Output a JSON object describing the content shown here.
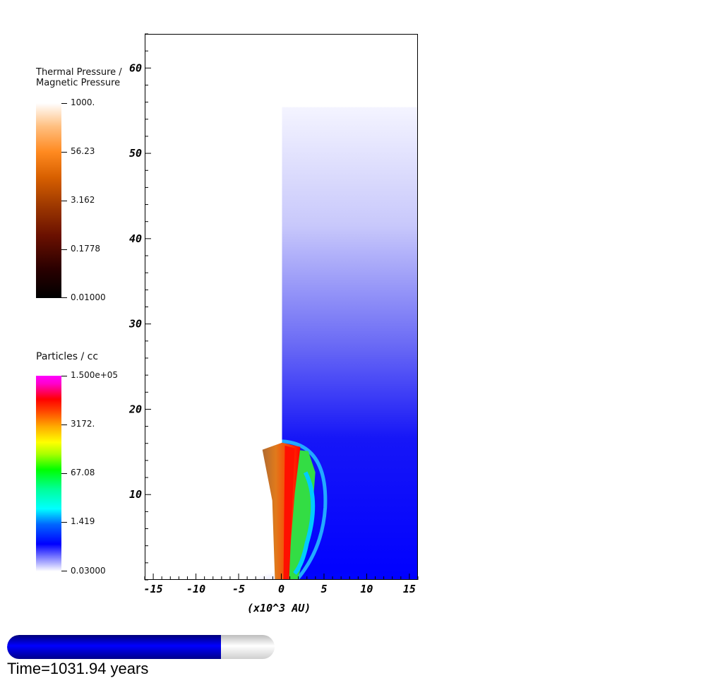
{
  "legend_thermal": {
    "title_line1": "Thermal Pressure /",
    "title_line2": "Magnetic Pressure",
    "ticks": [
      "1000.",
      "56.23",
      "3.162",
      "0.1778",
      "0.01000"
    ],
    "colors": [
      "#000000",
      "#6a1000",
      "#d86000",
      "#ffbf80",
      "#ffffff"
    ]
  },
  "legend_density": {
    "title": "Particles / cc",
    "ticks": [
      "1.500e+05",
      "3172.",
      "67.08",
      "1.419",
      "0.03000"
    ],
    "colors": [
      "#ffffff",
      "#0000ff",
      "#00ffff",
      "#00ff00",
      "#ffff00",
      "#ff0000",
      "#ff00ff"
    ]
  },
  "chart_data": {
    "type": "heatmap",
    "xlabel": "(x10^3 AU)",
    "xlim": [
      -16,
      16
    ],
    "ylim": [
      0,
      64
    ],
    "xticks": [
      -15,
      -10,
      -5,
      0,
      5,
      10,
      15
    ],
    "xtick_labels": [
      "-15",
      "-10",
      "-5",
      "0",
      "5",
      "10",
      "15"
    ],
    "yticks": [
      10,
      20,
      30,
      40,
      50,
      60
    ],
    "ytick_labels": [
      "10",
      "20",
      "30",
      "40",
      "50",
      "60"
    ],
    "fields": [
      "Thermal Pressure / Magnetic Pressure",
      "Particles / cc"
    ],
    "density_region": {
      "x_range": [
        0,
        16
      ],
      "y_range": [
        0,
        55.5
      ]
    },
    "jet": {
      "x_range": [
        -2.3,
        3.9
      ],
      "y_top": 16
    }
  },
  "progress": {
    "fraction": 0.8
  },
  "time_label": "Time=1031.94 years"
}
